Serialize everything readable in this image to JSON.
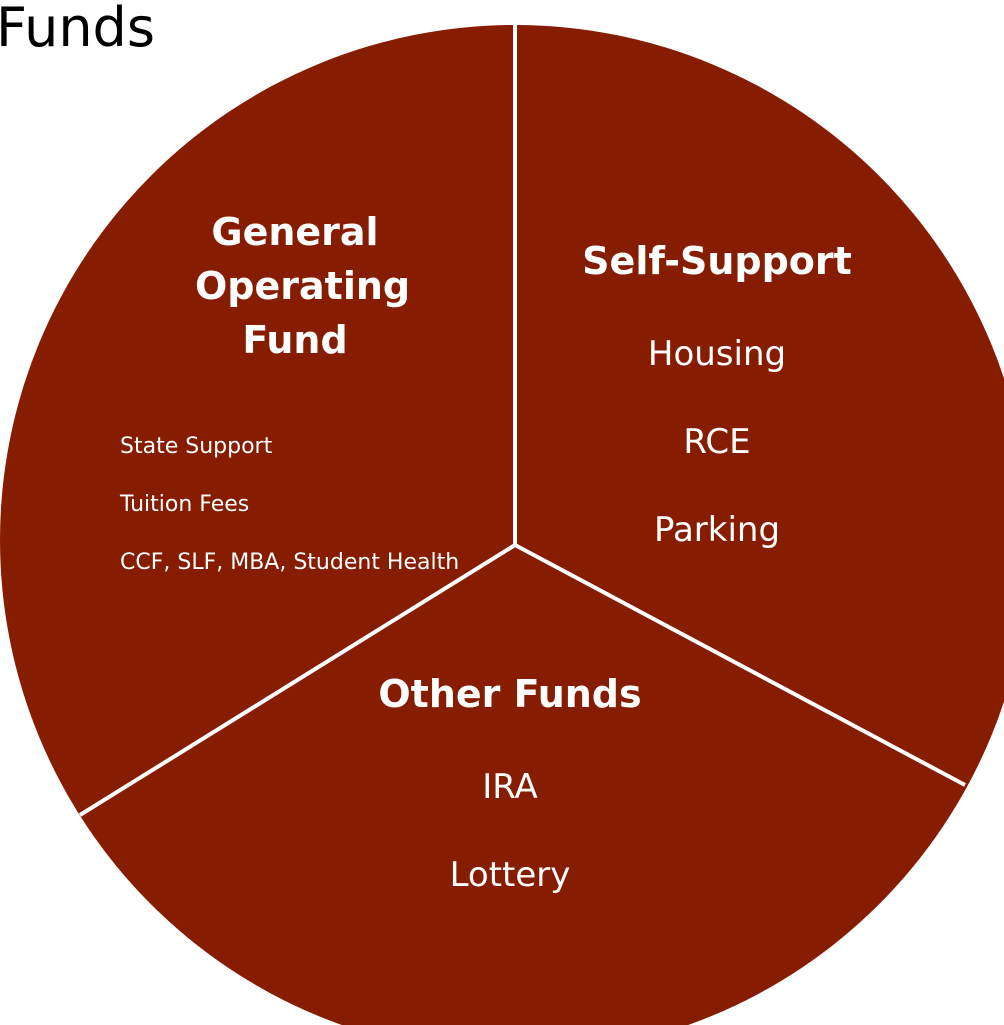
{
  "title": "Funds",
  "sections": [
    {
      "heading": [
        "General",
        "Operating",
        "Fund"
      ],
      "items": [
        "State Support",
        "Tuition Fees",
        "CCF, SLF, MBA, Student Health"
      ]
    },
    {
      "heading": [
        "Self-Support"
      ],
      "items": [
        "Housing",
        "RCE",
        "Parking"
      ]
    },
    {
      "heading": [
        "Other Funds"
      ],
      "items": [
        "IRA",
        "Lottery"
      ]
    }
  ]
}
